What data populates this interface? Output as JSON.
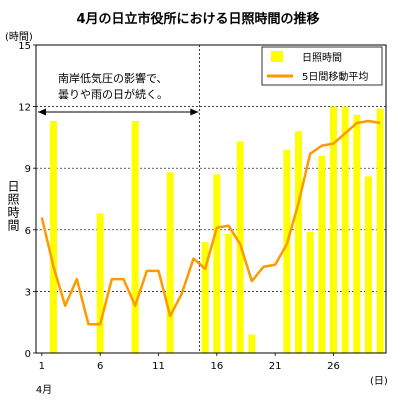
{
  "chart_data": {
    "type": "bar",
    "title": "4月の日立市役所における日照時間の推移",
    "ylabel": "日照時間",
    "yunit": "(時間)",
    "xunit": "(日)",
    "month_label": "4月",
    "ylim": [
      0,
      15
    ],
    "yticks": [
      "0",
      "3",
      "6",
      "9",
      "12",
      "15"
    ],
    "xticks": [
      "1",
      "6",
      "11",
      "16",
      "21",
      "26"
    ],
    "x": [
      1,
      2,
      3,
      4,
      5,
      6,
      7,
      8,
      9,
      10,
      11,
      12,
      13,
      14,
      15,
      16,
      17,
      18,
      19,
      20,
      21,
      22,
      23,
      24,
      25,
      26,
      27,
      28,
      29,
      30
    ],
    "series": [
      {
        "name": "日照時間",
        "type": "bar",
        "color": "#ffff00",
        "values": [
          0,
          11.3,
          0,
          0,
          0,
          6.8,
          0,
          0,
          11.3,
          0,
          0,
          8.8,
          0,
          0,
          5.4,
          8.7,
          5.8,
          10.3,
          0.9,
          0,
          0,
          9.9,
          10.8,
          5.9,
          9.6,
          12.0,
          12.0,
          11.6,
          8.6,
          11.9
        ]
      },
      {
        "name": "5日間移動平均",
        "type": "line",
        "color": "#ff9900",
        "values": [
          6.6,
          4.2,
          2.3,
          3.6,
          1.4,
          1.4,
          3.6,
          3.6,
          2.3,
          4.0,
          4.0,
          1.8,
          2.9,
          4.6,
          4.1,
          6.1,
          6.2,
          5.3,
          3.5,
          4.2,
          4.3,
          5.3,
          7.3,
          9.7,
          10.1,
          10.2,
          10.7,
          11.2,
          11.3,
          11.2
        ]
      }
    ],
    "annotation": {
      "lines": [
        "南岸低気圧の影響で、",
        "曇りや雨の日が続く。"
      ],
      "from_day": 1,
      "to_day": 14.5
    },
    "legend_position": "top-right",
    "grid": "horizontal dashed"
  }
}
